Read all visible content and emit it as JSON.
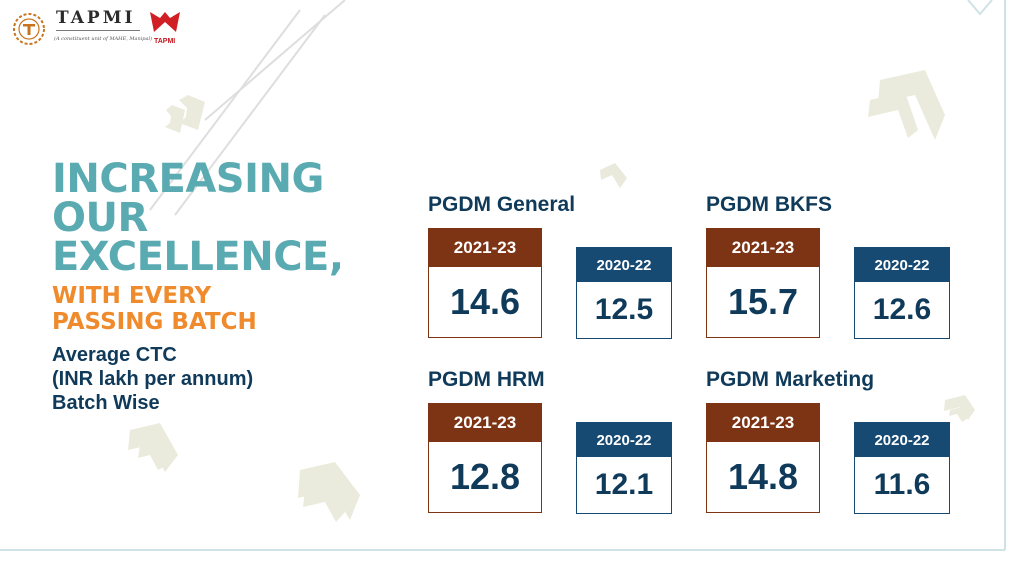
{
  "brand": {
    "name": "TAPMI",
    "tagline": "(A constituent unit of MAHE, Manipal)",
    "flame_label": "TAPMI"
  },
  "hero": {
    "title_line1": "INCREASING",
    "title_line2": "OUR",
    "title_line3": "EXCELLENCE,",
    "subtitle_line1": "WITH EVERY",
    "subtitle_line2": "PASSING BATCH",
    "caption_line1": "Average CTC",
    "caption_line2": "(INR lakh per annum)",
    "caption_line3": "Batch Wise"
  },
  "programs": [
    {
      "name": "PGDM General",
      "current_batch": "2021-23",
      "current_value": "14.6",
      "previous_batch": "2020-22",
      "previous_value": "12.5"
    },
    {
      "name": "PGDM BKFS",
      "current_batch": "2021-23",
      "current_value": "15.7",
      "previous_batch": "2020-22",
      "previous_value": "12.6"
    },
    {
      "name": "PGDM HRM",
      "current_batch": "2021-23",
      "current_value": "12.8",
      "previous_batch": "2020-22",
      "previous_value": "12.1"
    },
    {
      "name": "PGDM Marketing",
      "current_batch": "2021-23",
      "current_value": "14.8",
      "previous_batch": "2020-22",
      "previous_value": "11.6"
    }
  ],
  "colors": {
    "title_teal": "#5aaab2",
    "subtitle_orange": "#ef8b2c",
    "navy_text": "#103a5a",
    "current_brown": "#7d3414",
    "previous_blue": "#164a73",
    "decor_chevron": "#ebebdd"
  }
}
